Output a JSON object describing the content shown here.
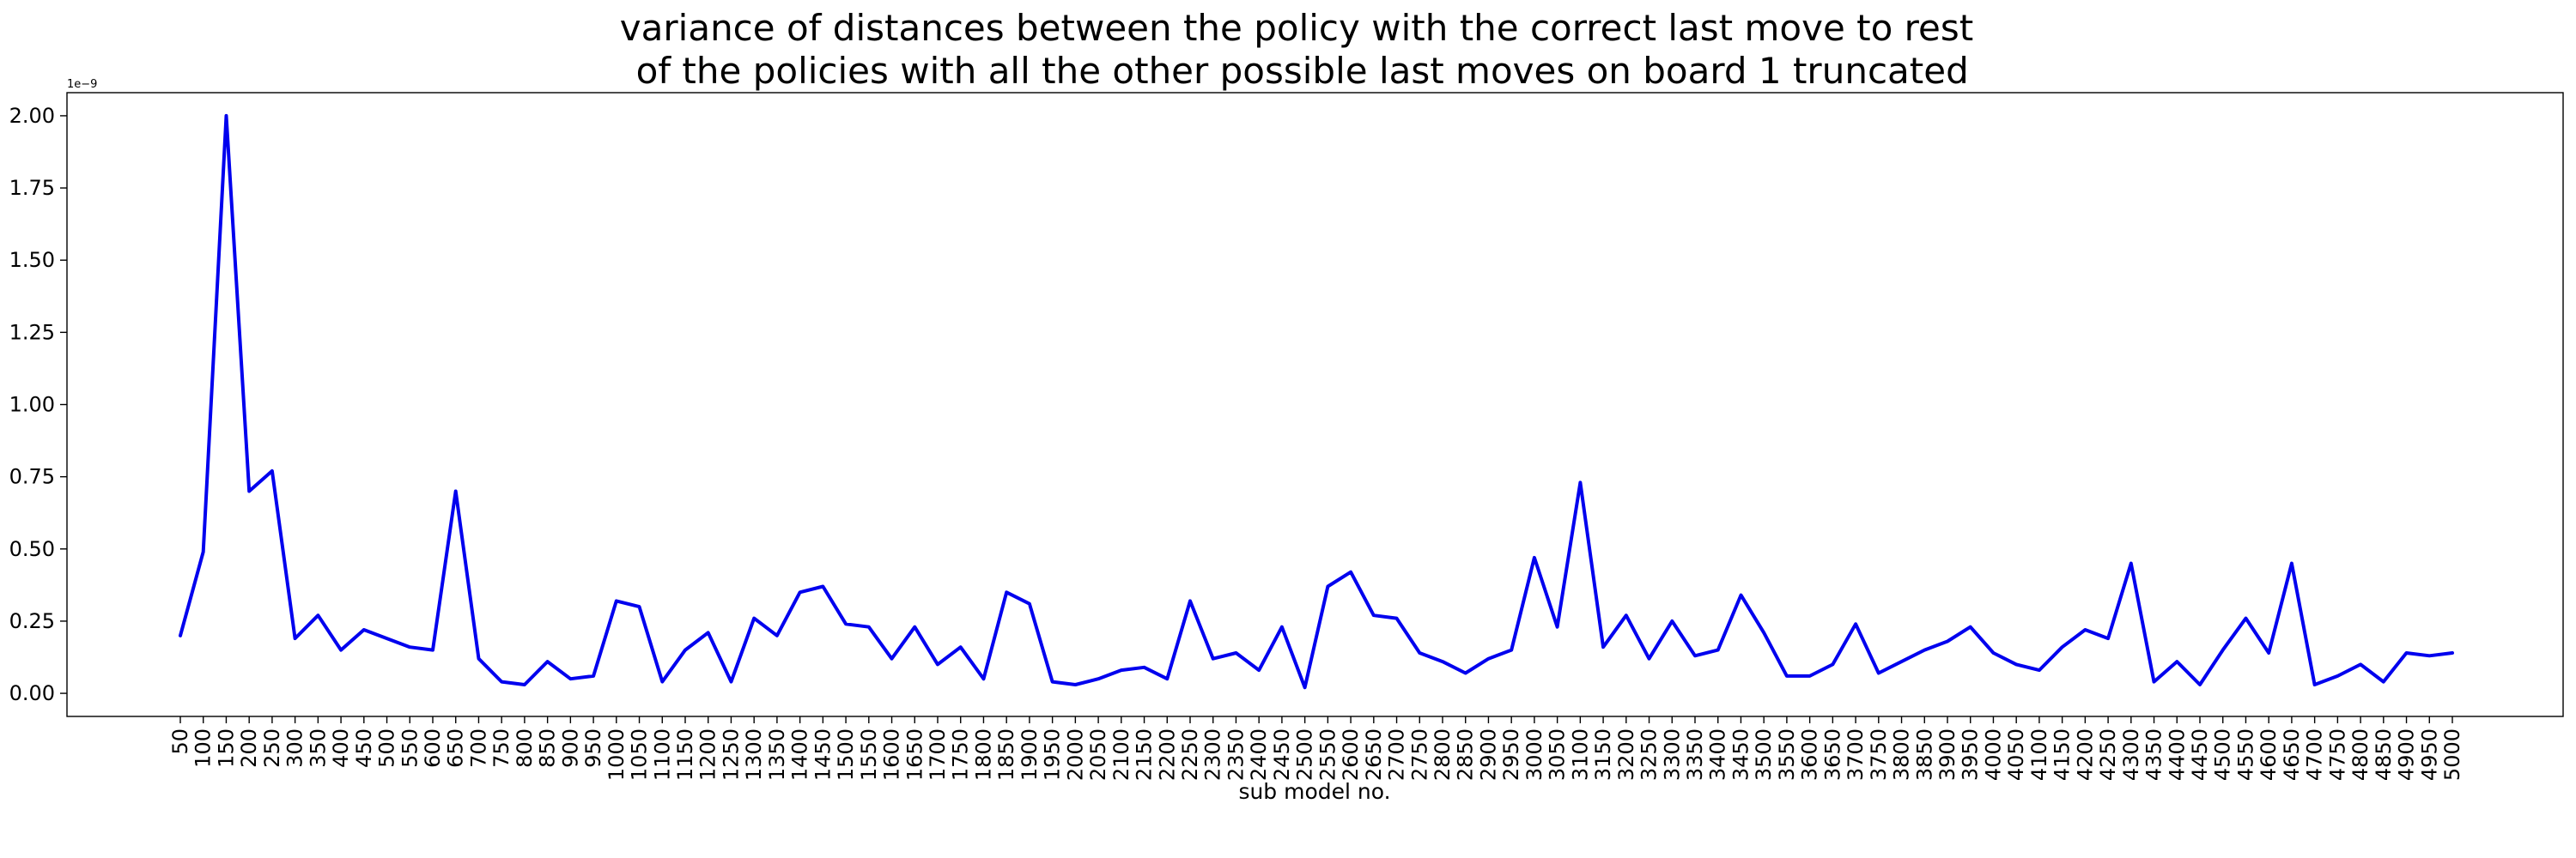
{
  "chart_data": {
    "type": "line",
    "title_line1": "variance of distances between the policy with the correct last move to rest",
    "title_line2": " of the policies with all the other possible last moves on board 1 truncated",
    "xlabel": "sub model no.",
    "ylabel": "",
    "y_offset_text": "1e−9",
    "y_scale": 1e-09,
    "ylim": [
      -0.08,
      2.08
    ],
    "y_ticks": [
      "0.00",
      "0.25",
      "0.50",
      "0.75",
      "1.00",
      "1.25",
      "1.50",
      "1.75",
      "2.00"
    ],
    "x_ticks": [
      "50",
      "100",
      "150",
      "200",
      "250",
      "300",
      "350",
      "400",
      "450",
      "500",
      "550",
      "600",
      "650",
      "700",
      "750",
      "800",
      "850",
      "900",
      "950",
      "1000",
      "1050",
      "1100",
      "1150",
      "1200",
      "1250",
      "1300",
      "1350",
      "1400",
      "1450",
      "1500",
      "1550",
      "1600",
      "1650",
      "1700",
      "1750",
      "1800",
      "1850",
      "1900",
      "1950",
      "2000",
      "2050",
      "2100",
      "2150",
      "2200",
      "2250",
      "2300",
      "2350",
      "2400",
      "2450",
      "2500",
      "2550",
      "2600",
      "2650",
      "2700",
      "2750",
      "2800",
      "2850",
      "2900",
      "2950",
      "3000",
      "3050",
      "3100",
      "3150",
      "3200",
      "3250",
      "3300",
      "3350",
      "3400",
      "3450",
      "3500",
      "3550",
      "3600",
      "3650",
      "3700",
      "3750",
      "3800",
      "3850",
      "3900",
      "3950",
      "4000",
      "4050",
      "4100",
      "4150",
      "4200",
      "4250",
      "4300",
      "4350",
      "4400",
      "4450",
      "4500",
      "4550",
      "4600",
      "4650",
      "4700",
      "4750",
      "4800",
      "4850",
      "4900",
      "4950",
      "5000"
    ],
    "line_color": "#0000ee",
    "grid": false,
    "series": [
      {
        "values": [
          0.2,
          0.49,
          2.0,
          0.7,
          0.77,
          0.19,
          0.27,
          0.15,
          0.22,
          0.19,
          0.16,
          0.15,
          0.7,
          0.12,
          0.04,
          0.03,
          0.11,
          0.05,
          0.06,
          0.32,
          0.3,
          0.04,
          0.15,
          0.21,
          0.04,
          0.26,
          0.2,
          0.35,
          0.37,
          0.24,
          0.23,
          0.12,
          0.23,
          0.1,
          0.16,
          0.05,
          0.35,
          0.31,
          0.04,
          0.03,
          0.05,
          0.08,
          0.09,
          0.05,
          0.32,
          0.12,
          0.14,
          0.08,
          0.23,
          0.02,
          0.37,
          0.42,
          0.27,
          0.26,
          0.14,
          0.11,
          0.07,
          0.12,
          0.15,
          0.47,
          0.23,
          0.73,
          0.16,
          0.27,
          0.12,
          0.25,
          0.13,
          0.15,
          0.34,
          0.21,
          0.06,
          0.06,
          0.1,
          0.24,
          0.07,
          0.11,
          0.15,
          0.18,
          0.23,
          0.14,
          0.1,
          0.08,
          0.16,
          0.22,
          0.19,
          0.45,
          0.04,
          0.11,
          0.03,
          0.15,
          0.26,
          0.14,
          0.45,
          0.03,
          0.06,
          0.1,
          0.04,
          0.14,
          0.13,
          0.14
        ]
      }
    ]
  }
}
